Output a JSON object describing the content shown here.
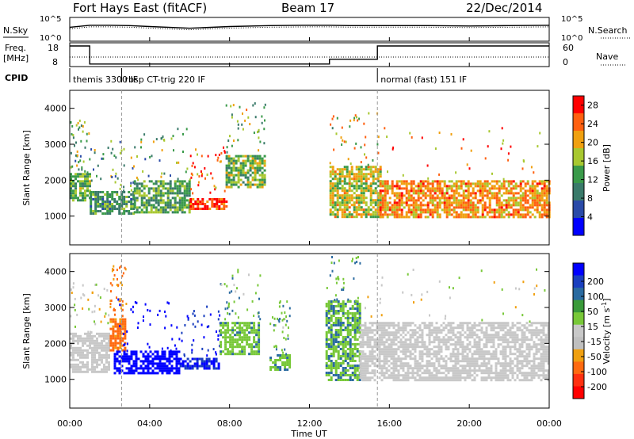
{
  "header": {
    "station": "Fort Hays East (fitACF)",
    "beam": "Beam 17",
    "date": "22/Dec/2014"
  },
  "strips": {
    "nsky_label": "N.Sky",
    "nsky_ticks": [
      "10^5",
      "10^0"
    ],
    "nsearch_label": "N.Search",
    "nsearch_ticks": [
      "10^5",
      "10^0"
    ],
    "freq_label_1": "Freq.",
    "freq_label_2": "[MHz]",
    "freq_ticks": [
      "18",
      "8"
    ],
    "nave_label": "Nave",
    "nave_ticks": [
      "60",
      "0"
    ],
    "cpid_label": "CPID",
    "cpid_segments": [
      {
        "label": "themis 3300 IF",
        "start_hour": 0,
        "end_hour": 2.6
      },
      {
        "label": "rbsp CT-trig 220 IF",
        "start_hour": 2.6,
        "end_hour": 15.4
      },
      {
        "label": "normal (fast) 151 IF",
        "start_hour": 15.4,
        "end_hour": 24
      }
    ]
  },
  "colors": {
    "power_scale": [
      "#0000ff",
      "#2a4aa8",
      "#3a7a6a",
      "#3a9a4a",
      "#a8c830",
      "#f0a010",
      "#ff6010",
      "#ff0000"
    ],
    "velocity_scale": [
      "#0000ff",
      "#1a3fbf",
      "#2a6aa0",
      "#3a9a3a",
      "#78c838",
      "#c8c8c8",
      "#bfbfbf",
      "#f0a010",
      "#ff6a10",
      "#ff3010",
      "#ff0000"
    ]
  },
  "chart_data": [
    {
      "type": "line",
      "name": "N.Sky",
      "x_hours": [
        0,
        1,
        2,
        3,
        4,
        6,
        8,
        10,
        12,
        13,
        14,
        16,
        18,
        20,
        22,
        24
      ],
      "values": [
        1000,
        3000,
        3000,
        2500,
        1500,
        600,
        1500,
        2500,
        3000,
        3000,
        2500,
        2500,
        2500,
        2000,
        2500,
        3000
      ],
      "xlim": [
        0,
        24
      ]
    },
    {
      "type": "line",
      "name": "Freq.",
      "x_hours": [
        0,
        1,
        1,
        13,
        13,
        15.4,
        15.4,
        24
      ],
      "values": [
        18,
        18,
        8.5,
        8.5,
        11,
        11,
        18,
        18
      ],
      "ylim": [
        8,
        18
      ]
    },
    {
      "type": "heatmap",
      "name": "Power",
      "xlabel": "Time UT",
      "ylabel": "Slant Range [km]",
      "xlim": [
        0,
        24
      ],
      "ylim": [
        200,
        4500
      ],
      "x_ticks": [
        "00:00",
        "04:00",
        "08:00",
        "12:00",
        "16:00",
        "20:00",
        "00:00"
      ],
      "y_ticks": [
        1000,
        2000,
        3000,
        4000
      ],
      "colorbar_label": "Power [dB]",
      "colorbar_ticks": [
        4,
        8,
        12,
        16,
        20,
        24,
        28
      ],
      "colorbar_range": [
        0,
        30
      ],
      "echo_bands": [
        {
          "t0": 0.0,
          "t1": 1.0,
          "r0": 1450,
          "r1": 2200,
          "power": 14
        },
        {
          "t0": 1.0,
          "t1": 3.2,
          "r0": 1100,
          "r1": 1700,
          "power": 12
        },
        {
          "t0": 3.2,
          "t1": 6.0,
          "r0": 1100,
          "r1": 2000,
          "power": 13
        },
        {
          "t0": 6.0,
          "t1": 7.8,
          "r0": 1200,
          "r1": 1500,
          "power": 26
        },
        {
          "t0": 7.8,
          "t1": 9.8,
          "r0": 1800,
          "r1": 2700,
          "power": 15
        },
        {
          "t0": 13.0,
          "t1": 15.5,
          "r0": 1000,
          "r1": 2400,
          "power": 18
        },
        {
          "t0": 15.5,
          "t1": 24.0,
          "r0": 1000,
          "r1": 2000,
          "power": 22
        }
      ]
    },
    {
      "type": "heatmap",
      "name": "Velocity",
      "xlabel": "Time UT",
      "ylabel": "Slant Range [km]",
      "xlim": [
        0,
        24
      ],
      "ylim": [
        200,
        4500
      ],
      "x_ticks": [
        "00:00",
        "04:00",
        "08:00",
        "12:00",
        "16:00",
        "20:00",
        "00:00"
      ],
      "y_ticks": [
        1000,
        2000,
        3000,
        4000
      ],
      "colorbar_label": "Velocity [m s^-1]",
      "colorbar_ticks": [
        200,
        100,
        50,
        15,
        -15,
        -50,
        -100,
        -200
      ],
      "echo_bands": [
        {
          "t0": 0.0,
          "t1": 2.0,
          "r0": 1200,
          "r1": 2300,
          "velocity": 0
        },
        {
          "t0": 2.0,
          "t1": 2.8,
          "r0": 1800,
          "r1": 2700,
          "velocity": -60
        },
        {
          "t0": 2.2,
          "t1": 5.5,
          "r0": 1200,
          "r1": 1800,
          "velocity": 220
        },
        {
          "t0": 5.5,
          "t1": 7.5,
          "r0": 1300,
          "r1": 1600,
          "velocity": 150
        },
        {
          "t0": 7.5,
          "t1": 9.5,
          "r0": 1700,
          "r1": 2600,
          "velocity": 40
        },
        {
          "t0": 10.0,
          "t1": 11.0,
          "r0": 1300,
          "r1": 1700,
          "velocity": 40
        },
        {
          "t0": 12.8,
          "t1": 14.5,
          "r0": 1000,
          "r1": 3200,
          "velocity": 45
        },
        {
          "t0": 14.5,
          "t1": 24.0,
          "r0": 1000,
          "r1": 2600,
          "velocity": 0
        }
      ]
    }
  ]
}
